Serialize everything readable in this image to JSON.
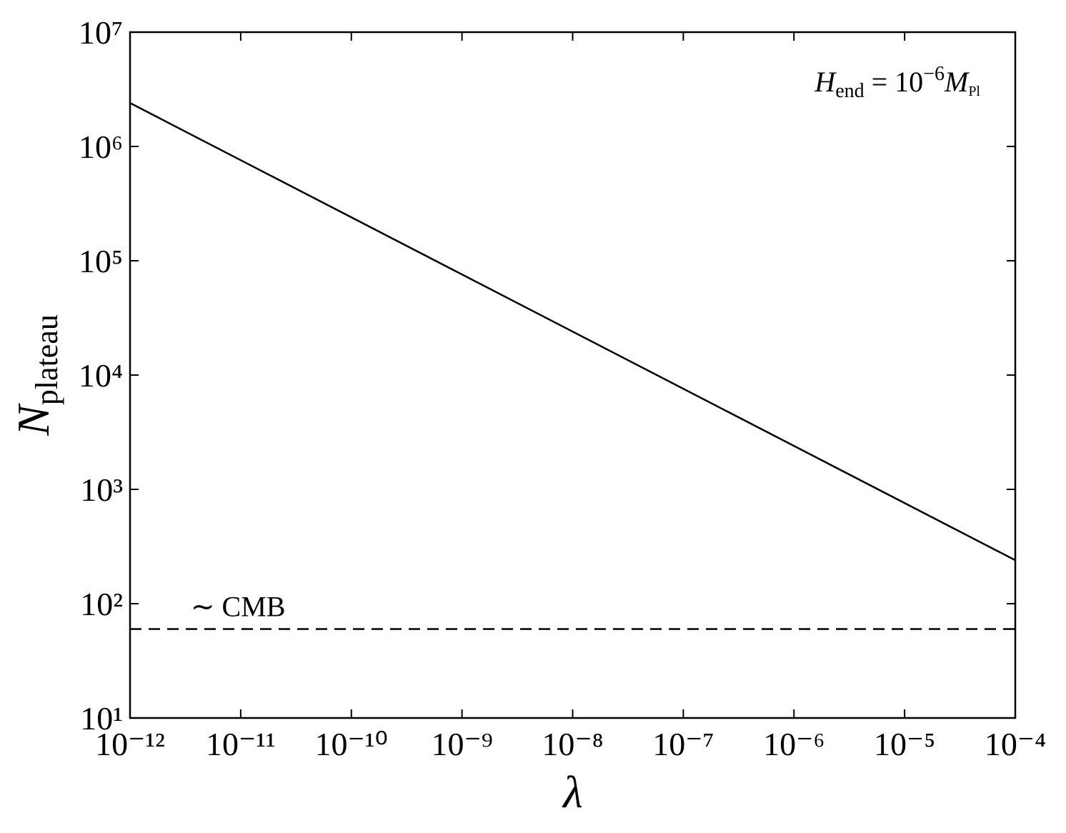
{
  "chart_data": {
    "type": "line",
    "xlabel": "λ",
    "ylabel": [
      "N",
      "plateau"
    ],
    "annotation": [
      "H",
      "end",
      " = 10",
      "−6",
      "M",
      "Pl"
    ],
    "x": [
      1e-12,
      0.0001
    ],
    "series": [
      {
        "color": "#000000",
        "dash": false,
        "values": [
          2400000,
          240
        ]
      },
      {
        "name": "∼ CMB",
        "color": "#000000",
        "dash": true,
        "values": [
          60,
          60
        ]
      }
    ],
    "xscale": "log",
    "yscale": "log",
    "xlim": [
      1e-12,
      0.0001
    ],
    "ylim": [
      10,
      10000000
    ],
    "xticks": [
      {
        "value": 1e-12,
        "label": "10⁻¹²"
      },
      {
        "value": 1e-11,
        "label": "10⁻¹¹"
      },
      {
        "value": 1e-10,
        "label": "10⁻¹⁰"
      },
      {
        "value": 1e-09,
        "label": "10⁻⁹"
      },
      {
        "value": 1e-08,
        "label": "10⁻⁸"
      },
      {
        "value": 1e-07,
        "label": "10⁻⁷"
      },
      {
        "value": 1e-06,
        "label": "10⁻⁶"
      },
      {
        "value": 1e-05,
        "label": "10⁻⁵"
      },
      {
        "value": 0.0001,
        "label": "10⁻⁴"
      }
    ],
    "yticks": [
      {
        "value": 10,
        "label": "10¹"
      },
      {
        "value": 100,
        "label": "10²"
      },
      {
        "value": 1000,
        "label": "10³"
      },
      {
        "value": 10000,
        "label": "10⁴"
      },
      {
        "value": 100000,
        "label": "10⁵"
      },
      {
        "value": 1000000,
        "label": "10⁶"
      },
      {
        "value": 10000000,
        "label": "10⁷"
      }
    ],
    "grid": false
  }
}
